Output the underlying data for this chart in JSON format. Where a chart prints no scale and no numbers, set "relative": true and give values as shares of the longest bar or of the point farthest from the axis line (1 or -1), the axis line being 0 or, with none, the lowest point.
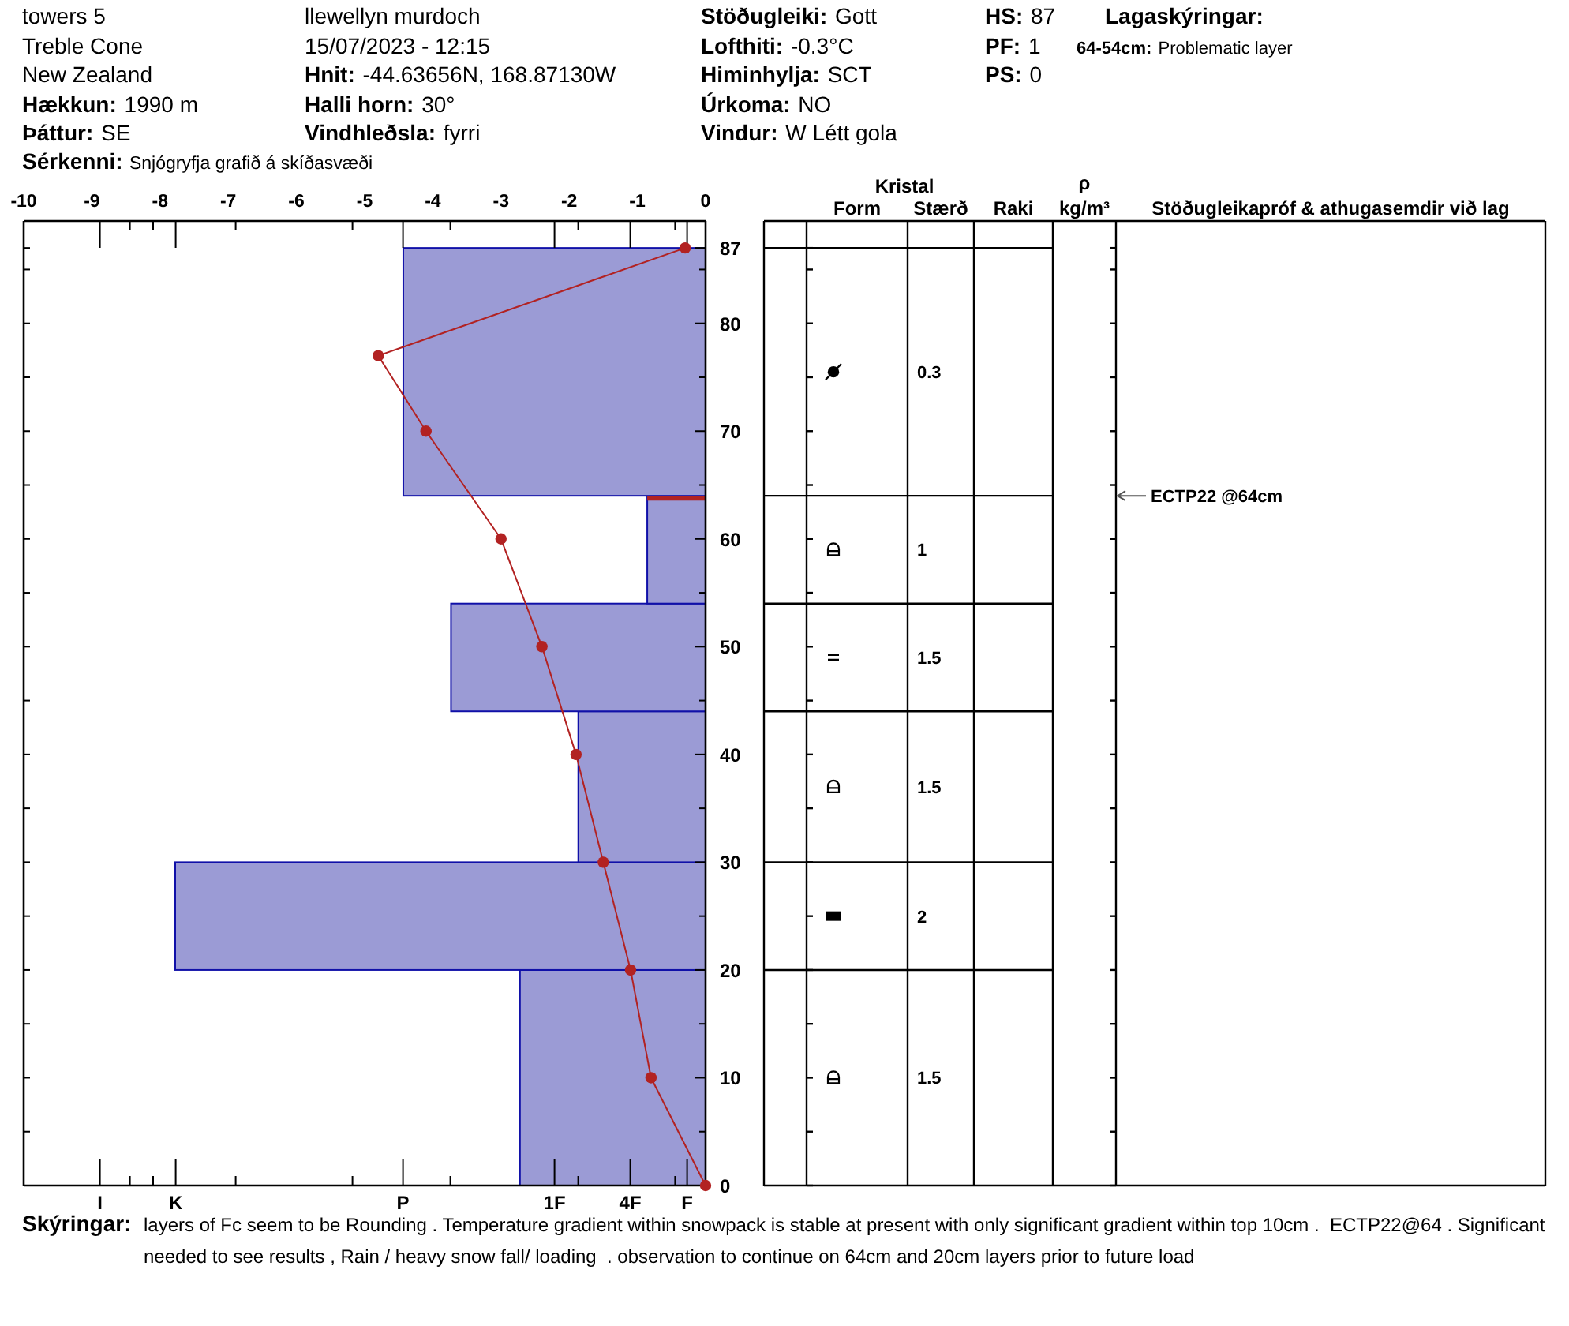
{
  "chart_data": [
    {
      "type": "bar",
      "orientation": "horizontal",
      "relative": true,
      "color": "#9b9bd5",
      "x": [
        10,
        25,
        37,
        49,
        59,
        75.5
      ],
      "values": [
        0.35,
        1,
        0.24,
        0.48,
        0.11,
        0.57
      ],
      "ylim": [
        0,
        89.5
      ],
      "yticks": [
        0,
        {
          "value": 5,
          "label": null
        },
        10,
        {
          "value": 15,
          "label": null
        },
        20,
        {
          "value": 25,
          "label": null
        },
        30,
        {
          "value": 35,
          "label": null
        },
        40,
        {
          "value": 45,
          "label": null
        },
        50,
        {
          "value": 55,
          "label": null
        },
        60,
        {
          "value": 65,
          "label": null
        },
        70,
        {
          "value": 75,
          "label": null
        },
        80,
        {
          "value": 85,
          "label": null
        },
        87
      ],
      "ref_lines": [
        {
          "axis": "y",
          "value": 64,
          "color": "#b22222"
        }
      ],
      "annotations": [
        "towers 5",
        "Treble Cone",
        "New Zealand",
        "Hækkun:",
        "1990 m",
        "Þáttur:",
        "SE",
        "Sérkenni:",
        "Snjógryfja grafið á skíðasvæði",
        "llewellyn murdoch",
        "15/07/2023 - 12:15",
        "Hnit:",
        "-44.63656N, 168.87130W",
        "Halli horn:",
        "30°",
        "Vindhleðsla:",
        "fyrri",
        "Stöðugleiki:",
        "Gott",
        "Lofthiti:",
        "-0.3°C",
        "Himinhylja:",
        "SCT",
        "Úrkoma:",
        "NO",
        "Vindur:",
        "W Létt gola",
        "HS:",
        "87",
        "PF:",
        "1",
        "PS:",
        "0",
        "Lagaskýringar:",
        "64-54cm:",
        "Problematic layer",
        "Skýringar:",
        "layers of Fc seem to be Rounding . Temperature gradient within snowpack is stable at present with only significant gradient within top 10cm .  ECTP22@64 . Significant",
        "needed to see results , Rain / heavy snow fall/ loading  . observation to continue on 64cm and 20cm layers prior to future load",
        "I",
        "K",
        "P",
        "1F",
        "4F",
        "F"
      ]
    },
    {
      "type": "line",
      "color": "#b22222",
      "marker": "circle",
      "x": [
        -0.3,
        -4.8,
        -4.1,
        -3.0,
        -2.4,
        -1.9,
        -1.5,
        -1.1,
        -0.8,
        0
      ],
      "values": [
        87,
        77,
        70,
        60,
        50,
        40,
        30,
        20,
        10,
        0
      ],
      "xlim": [
        -10,
        0
      ],
      "xticks": [
        -10,
        -9,
        -8,
        -7,
        -6,
        -5,
        -4,
        -3,
        -2,
        -1,
        0
      ],
      "ylim": [
        0,
        89.5
      ],
      "tick_labels": "x"
    },
    {
      "type": "other",
      "categories": [
        null,
        "Form",
        "Stærð",
        "Raki",
        "ρ kg/m³",
        "Stöðugleikapróf & athugasemdir við lag"
      ],
      "annotations": [
        "Kristal",
        "0.3",
        "1",
        "1.5",
        "1.5",
        "2",
        "1.5",
        "ECTP22 @64cm"
      ]
    }
  ]
}
